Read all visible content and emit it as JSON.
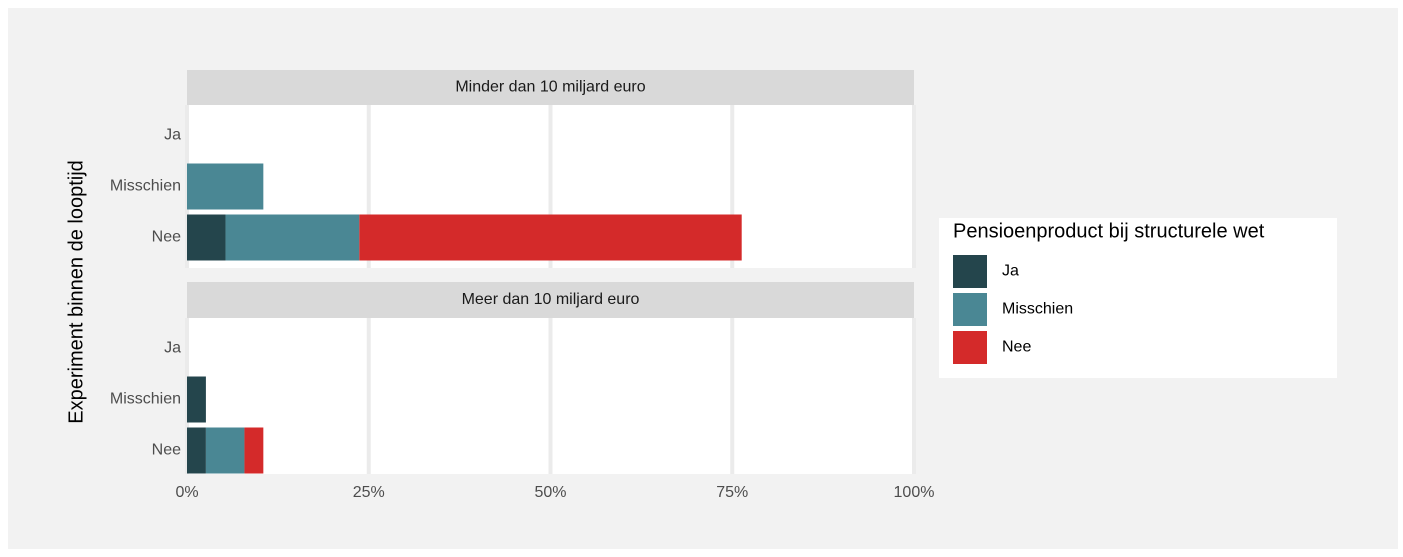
{
  "y_label": "Experiment binnen de looptijd",
  "legend_title": "Pensioenproduct bij structurele wet",
  "chart_data": [
    {
      "type": "bar",
      "title": "Minder dan 10 miljard euro",
      "categories": [
        "Ja",
        "Misschien",
        "Nee"
      ],
      "series": [
        {
          "name": "Ja",
          "color": "#24454c",
          "values": [
            0,
            0,
            5.3
          ]
        },
        {
          "name": "Misschien",
          "color": "#4a8794",
          "values": [
            0,
            10.5,
            18.4
          ]
        },
        {
          "name": "Nee",
          "color": "#d42a2a",
          "values": [
            0,
            0,
            52.6
          ]
        }
      ],
      "xlim": [
        0,
        100
      ],
      "xticks": [
        {
          "value": 0,
          "label": "0%"
        },
        {
          "value": 25,
          "label": "25%"
        },
        {
          "value": 50,
          "label": "50%"
        },
        {
          "value": 75,
          "label": "75%"
        },
        {
          "value": 100,
          "label": "100%"
        }
      ],
      "grid": true
    },
    {
      "type": "bar",
      "title": "Meer dan 10 miljard euro",
      "categories": [
        "Ja",
        "Misschien",
        "Nee"
      ],
      "series": [
        {
          "name": "Ja",
          "color": "#24454c",
          "values": [
            0,
            2.6,
            2.6
          ]
        },
        {
          "name": "Misschien",
          "color": "#4a8794",
          "values": [
            0,
            0,
            5.3
          ]
        },
        {
          "name": "Nee",
          "color": "#d42a2a",
          "values": [
            0,
            0,
            2.6
          ]
        }
      ],
      "xlim": [
        0,
        100
      ],
      "xticks": [
        {
          "value": 0,
          "label": "0%"
        },
        {
          "value": 25,
          "label": "25%"
        },
        {
          "value": 50,
          "label": "50%"
        },
        {
          "value": 75,
          "label": "75%"
        },
        {
          "value": 100,
          "label": "100%"
        }
      ],
      "grid": true
    }
  ]
}
